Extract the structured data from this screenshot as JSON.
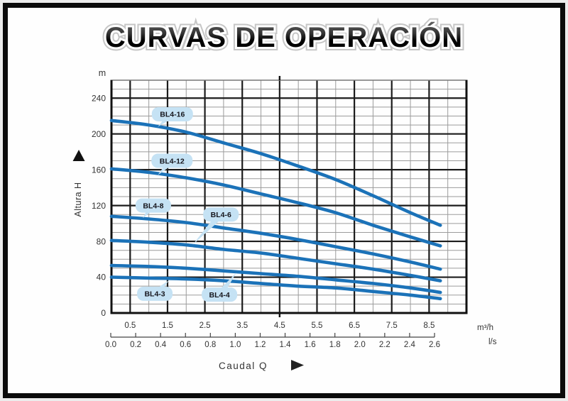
{
  "title": "CURVAS DE OPERACIÓN",
  "colors": {
    "curve": "#1b72b8",
    "bubble_fill": "#c5e2f4",
    "bubble_text": "#16161d",
    "grid_major": "#1c1c1c",
    "grid_minor": "#9b9b9b",
    "border": "#111111",
    "border_top": "#777777",
    "axis_text": "#333333",
    "ruler": "#444444"
  },
  "chart_data": {
    "type": "line",
    "title": "CURVAS DE OPERACIÓN",
    "x_axis": {
      "label": "Caudal Q",
      "unit_primary": "m³/h",
      "range": [
        0,
        9.5
      ],
      "major_tick_values": [
        0.5,
        1.5,
        2.5,
        3.5,
        4.5,
        5.5,
        6.5,
        7.5,
        8.5
      ],
      "major_tick_labels": [
        "0.5",
        "1.5",
        "2.5",
        "3.5",
        "4.5",
        "5.5",
        "6.5",
        "7.5",
        "8.5"
      ],
      "minor_tick_values": [
        1,
        2,
        3,
        4,
        5,
        6,
        7,
        8,
        9
      ],
      "grid": true
    },
    "secondary_x_axis": {
      "unit": "l/s",
      "tick_labels": [
        "0.0",
        "0.2",
        "0.4",
        "0.6",
        "0.8",
        "1.0",
        "1.2",
        "1.4",
        "1.6",
        "1.8",
        "2.0",
        "2.2",
        "2.4",
        "2.6"
      ]
    },
    "y_axis": {
      "label": "Altura H",
      "unit": "m",
      "range": [
        0,
        260
      ],
      "major_tick_values": [
        40,
        80,
        120,
        160,
        200,
        240
      ],
      "tick_label_values": [
        0,
        40,
        80,
        120,
        160,
        200,
        240
      ],
      "tick_labels": [
        "0",
        "40",
        "80",
        "120",
        "160",
        "200",
        "240"
      ],
      "minor_step": 10,
      "grid": true
    },
    "series": [
      {
        "name": "BL4-16",
        "points": [
          [
            0,
            215
          ],
          [
            1,
            210
          ],
          [
            2,
            202
          ],
          [
            3,
            190
          ],
          [
            4,
            178
          ],
          [
            5,
            164
          ],
          [
            6,
            149
          ],
          [
            7,
            131
          ],
          [
            8,
            112
          ],
          [
            8.8,
            98
          ]
        ],
        "label_pos": [
          1.63,
          222
        ],
        "pointer_pos": [
          1.24,
          208
        ]
      },
      {
        "name": "BL4-12",
        "points": [
          [
            0,
            161
          ],
          [
            1,
            157
          ],
          [
            2,
            151
          ],
          [
            3,
            143
          ],
          [
            4,
            133
          ],
          [
            5,
            123
          ],
          [
            6,
            112
          ],
          [
            7,
            98
          ],
          [
            8,
            85
          ],
          [
            8.8,
            75
          ]
        ],
        "label_pos": [
          1.62,
          170
        ],
        "pointer_pos": [
          1.24,
          154
        ]
      },
      {
        "name": "BL4-8",
        "points": [
          [
            0,
            108
          ],
          [
            1,
            105
          ],
          [
            2,
            101
          ],
          [
            3,
            95
          ],
          [
            4,
            89
          ],
          [
            5,
            82
          ],
          [
            6,
            74
          ],
          [
            7,
            66
          ],
          [
            8,
            57
          ],
          [
            8.8,
            49
          ]
        ],
        "label_pos": [
          1.12,
          120
        ],
        "pointer_pos": [
          0.84,
          106
        ]
      },
      {
        "name": "BL4-6",
        "points": [
          [
            0,
            81
          ],
          [
            1,
            79
          ],
          [
            2,
            76
          ],
          [
            3,
            71
          ],
          [
            4,
            67
          ],
          [
            5,
            61
          ],
          [
            6,
            55
          ],
          [
            7,
            49
          ],
          [
            8,
            42
          ],
          [
            8.8,
            36
          ]
        ],
        "label_pos": [
          2.93,
          110
        ],
        "pointer_pos": [
          2.17,
          76
        ]
      },
      {
        "name": "BL4-4",
        "points": [
          [
            0,
            53
          ],
          [
            1,
            52
          ],
          [
            2,
            50
          ],
          [
            3,
            47
          ],
          [
            4,
            44
          ],
          [
            5,
            41
          ],
          [
            6,
            37
          ],
          [
            7,
            33
          ],
          [
            8,
            28
          ],
          [
            8.8,
            23
          ]
        ],
        "label_pos": [
          2.89,
          20.5
        ],
        "pointer_pos": [
          3.34,
          45
        ]
      },
      {
        "name": "BL4-3",
        "points": [
          [
            0,
            40
          ],
          [
            1,
            39
          ],
          [
            2,
            38
          ],
          [
            3,
            36
          ],
          [
            4,
            33
          ],
          [
            5,
            30
          ],
          [
            6,
            28
          ],
          [
            7,
            24
          ],
          [
            8,
            20
          ],
          [
            8.8,
            16
          ]
        ],
        "label_pos": [
          1.16,
          21.5
        ],
        "pointer_pos": [
          1.54,
          36.5
        ]
      }
    ]
  }
}
